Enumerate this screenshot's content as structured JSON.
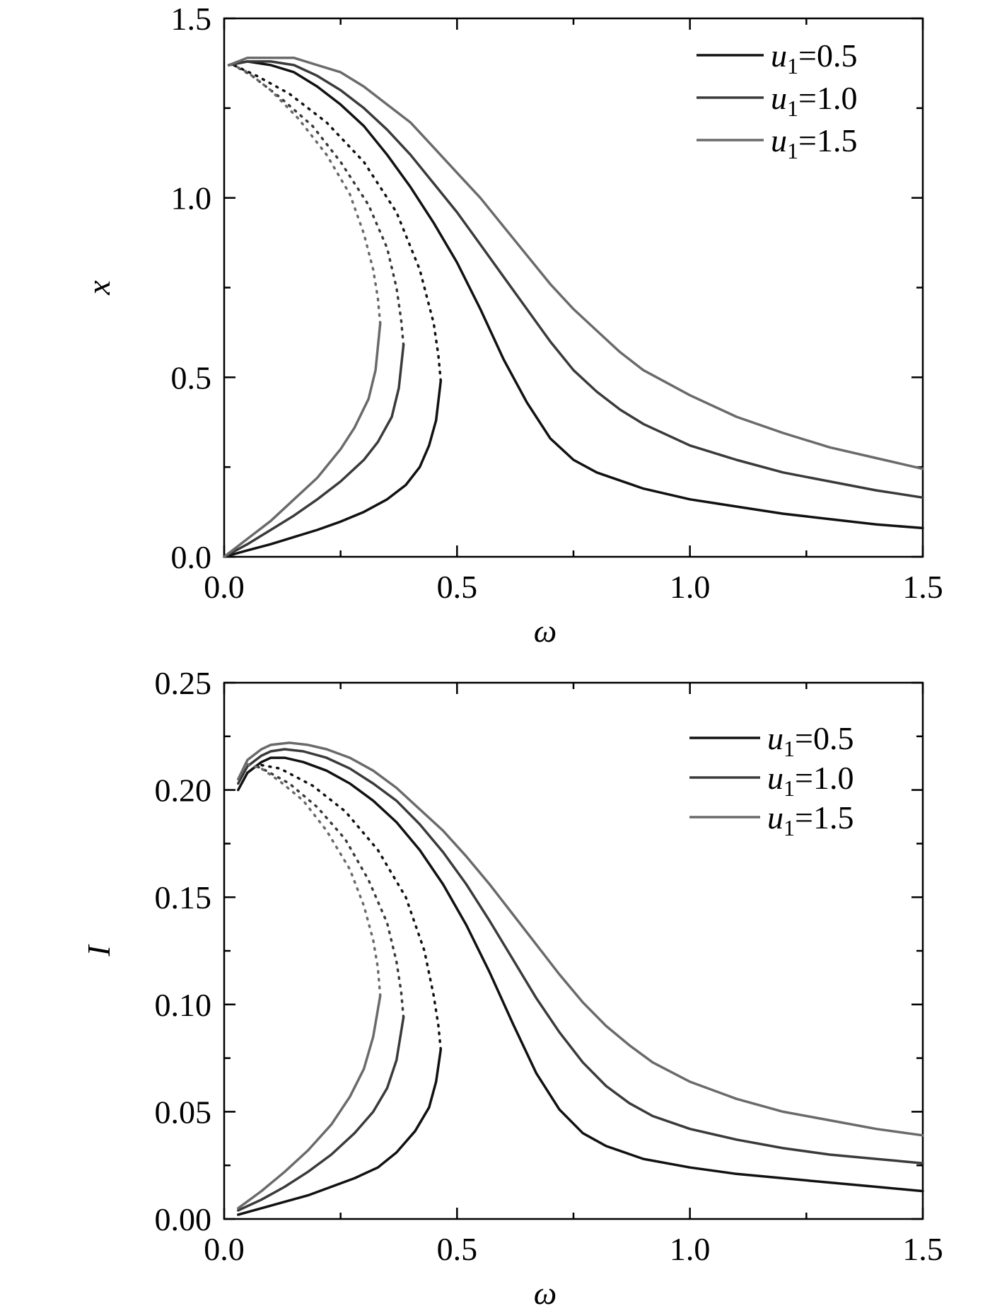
{
  "chart_data": [
    {
      "type": "line",
      "xlabel": "ω",
      "ylabel": "x",
      "xlim": [
        0,
        1.5
      ],
      "ylim": [
        0,
        1.5
      ],
      "xticks": [
        "0.0",
        "0.5",
        "1.0",
        "1.5"
      ],
      "yticks": [
        "0.0",
        "0.5",
        "1.0",
        "1.5"
      ],
      "legend_position": "top-right",
      "grid": false,
      "series": [
        {
          "name_var": "u",
          "name_sub": "1",
          "name_value": "=0.5",
          "color": "#111111",
          "stable_low": {
            "x": [
              0,
              0.05,
              0.1,
              0.15,
              0.2,
              0.25,
              0.3,
              0.35,
              0.39,
              0.42,
              0.44,
              0.455,
              0.465
            ],
            "y": [
              0,
              0.018,
              0.035,
              0.055,
              0.075,
              0.098,
              0.125,
              0.16,
              0.2,
              0.25,
              0.31,
              0.38,
              0.49
            ]
          },
          "unstable": {
            "x": [
              0.465,
              0.46,
              0.45,
              0.42,
              0.37,
              0.3,
              0.22,
              0.14,
              0.07,
              0.02
            ],
            "y": [
              0.49,
              0.56,
              0.65,
              0.8,
              0.96,
              1.1,
              1.21,
              1.29,
              1.34,
              1.37
            ]
          },
          "stable_high": {
            "x": [
              0.01,
              0.05,
              0.1,
              0.15,
              0.2,
              0.25,
              0.3,
              0.35,
              0.4,
              0.45,
              0.5,
              0.55,
              0.6,
              0.65,
              0.7,
              0.75,
              0.8,
              0.9,
              1.0,
              1.1,
              1.2,
              1.3,
              1.4,
              1.5
            ],
            "y": [
              1.37,
              1.38,
              1.37,
              1.35,
              1.31,
              1.26,
              1.2,
              1.12,
              1.03,
              0.93,
              0.82,
              0.69,
              0.55,
              0.43,
              0.33,
              0.27,
              0.235,
              0.19,
              0.16,
              0.14,
              0.12,
              0.105,
              0.09,
              0.08
            ]
          }
        },
        {
          "name_var": "u",
          "name_sub": "1",
          "name_value": "=1.0",
          "color": "#3a3a3a",
          "stable_low": {
            "x": [
              0,
              0.05,
              0.1,
              0.15,
              0.2,
              0.25,
              0.3,
              0.33,
              0.36,
              0.375,
              0.385
            ],
            "y": [
              0,
              0.035,
              0.075,
              0.115,
              0.16,
              0.21,
              0.27,
              0.32,
              0.39,
              0.47,
              0.59
            ]
          },
          "unstable": {
            "x": [
              0.385,
              0.38,
              0.37,
              0.35,
              0.31,
              0.25,
              0.19,
              0.12,
              0.06,
              0.02
            ],
            "y": [
              0.59,
              0.66,
              0.75,
              0.86,
              0.98,
              1.1,
              1.2,
              1.28,
              1.34,
              1.37
            ]
          },
          "stable_high": {
            "x": [
              0.01,
              0.05,
              0.1,
              0.15,
              0.2,
              0.25,
              0.3,
              0.35,
              0.4,
              0.45,
              0.5,
              0.55,
              0.6,
              0.65,
              0.7,
              0.75,
              0.8,
              0.85,
              0.9,
              1.0,
              1.1,
              1.2,
              1.3,
              1.4,
              1.5
            ],
            "y": [
              1.37,
              1.38,
              1.38,
              1.37,
              1.34,
              1.3,
              1.25,
              1.19,
              1.12,
              1.04,
              0.96,
              0.87,
              0.78,
              0.69,
              0.6,
              0.52,
              0.46,
              0.41,
              0.37,
              0.31,
              0.27,
              0.235,
              0.21,
              0.185,
              0.165
            ]
          }
        },
        {
          "name_var": "u",
          "name_sub": "1",
          "name_value": "=1.5",
          "color": "#6a6a6a",
          "stable_low": {
            "x": [
              0,
              0.05,
              0.1,
              0.15,
              0.2,
              0.25,
              0.28,
              0.31,
              0.325,
              0.335
            ],
            "y": [
              0,
              0.05,
              0.1,
              0.16,
              0.22,
              0.3,
              0.36,
              0.44,
              0.52,
              0.65
            ]
          },
          "unstable": {
            "x": [
              0.335,
              0.33,
              0.32,
              0.3,
              0.27,
              0.22,
              0.16,
              0.1,
              0.05,
              0.02
            ],
            "y": [
              0.65,
              0.72,
              0.8,
              0.9,
              1.01,
              1.12,
              1.22,
              1.3,
              1.35,
              1.37
            ]
          },
          "stable_high": {
            "x": [
              0.01,
              0.05,
              0.1,
              0.15,
              0.2,
              0.25,
              0.3,
              0.35,
              0.4,
              0.45,
              0.5,
              0.55,
              0.6,
              0.65,
              0.7,
              0.75,
              0.8,
              0.85,
              0.9,
              1.0,
              1.1,
              1.2,
              1.3,
              1.4,
              1.5
            ],
            "y": [
              1.37,
              1.39,
              1.39,
              1.39,
              1.37,
              1.35,
              1.31,
              1.26,
              1.21,
              1.14,
              1.07,
              1.0,
              0.92,
              0.84,
              0.76,
              0.69,
              0.63,
              0.57,
              0.52,
              0.45,
              0.39,
              0.345,
              0.305,
              0.275,
              0.245
            ]
          }
        }
      ]
    },
    {
      "type": "line",
      "xlabel": "ω",
      "ylabel": "I",
      "xlim": [
        0,
        1.5
      ],
      "ylim": [
        0,
        0.25
      ],
      "xticks": [
        "0.0",
        "0.5",
        "1.0",
        "1.5"
      ],
      "yticks": [
        "0.00",
        "0.05",
        "0.10",
        "0.15",
        "0.20",
        "0.25"
      ],
      "legend_position": "top-right",
      "grid": false,
      "series": [
        {
          "name_var": "u",
          "name_sub": "1",
          "name_value": "=0.5",
          "color": "#111111",
          "stable_low": {
            "x": [
              0.03,
              0.08,
              0.13,
              0.18,
              0.23,
              0.28,
              0.33,
              0.37,
              0.41,
              0.44,
              0.455,
              0.465
            ],
            "y": [
              0.002,
              0.005,
              0.008,
              0.011,
              0.015,
              0.019,
              0.024,
              0.031,
              0.041,
              0.052,
              0.064,
              0.079
            ]
          },
          "unstable": {
            "x": [
              0.465,
              0.46,
              0.45,
              0.43,
              0.39,
              0.33,
              0.26,
              0.19,
              0.12,
              0.07
            ],
            "y": [
              0.079,
              0.09,
              0.104,
              0.125,
              0.15,
              0.172,
              0.19,
              0.202,
              0.21,
              0.212
            ]
          },
          "stable_high": {
            "x": [
              0.03,
              0.05,
              0.08,
              0.1,
              0.13,
              0.17,
              0.22,
              0.27,
              0.32,
              0.37,
              0.42,
              0.47,
              0.52,
              0.57,
              0.62,
              0.67,
              0.72,
              0.77,
              0.82,
              0.9,
              1.0,
              1.1,
              1.2,
              1.3,
              1.4,
              1.5
            ],
            "y": [
              0.2,
              0.208,
              0.213,
              0.215,
              0.215,
              0.213,
              0.209,
              0.203,
              0.195,
              0.185,
              0.172,
              0.156,
              0.137,
              0.115,
              0.091,
              0.068,
              0.051,
              0.04,
              0.034,
              0.028,
              0.024,
              0.021,
              0.019,
              0.017,
              0.015,
              0.013
            ]
          }
        },
        {
          "name_var": "u",
          "name_sub": "1",
          "name_value": "=1.0",
          "color": "#3a3a3a",
          "stable_low": {
            "x": [
              0.03,
              0.08,
              0.13,
              0.18,
              0.23,
              0.28,
              0.32,
              0.35,
              0.37,
              0.385
            ],
            "y": [
              0.004,
              0.009,
              0.015,
              0.022,
              0.03,
              0.04,
              0.05,
              0.061,
              0.074,
              0.094
            ]
          },
          "unstable": {
            "x": [
              0.385,
              0.38,
              0.37,
              0.35,
              0.31,
              0.26,
              0.2,
              0.14,
              0.09,
              0.06
            ],
            "y": [
              0.094,
              0.106,
              0.12,
              0.138,
              0.158,
              0.177,
              0.192,
              0.203,
              0.209,
              0.212
            ]
          },
          "stable_high": {
            "x": [
              0.03,
              0.05,
              0.08,
              0.1,
              0.13,
              0.17,
              0.22,
              0.27,
              0.32,
              0.37,
              0.42,
              0.47,
              0.52,
              0.57,
              0.62,
              0.67,
              0.72,
              0.77,
              0.82,
              0.87,
              0.92,
              1.0,
              1.1,
              1.2,
              1.3,
              1.4,
              1.5
            ],
            "y": [
              0.203,
              0.211,
              0.216,
              0.218,
              0.219,
              0.218,
              0.215,
              0.21,
              0.203,
              0.195,
              0.184,
              0.171,
              0.156,
              0.139,
              0.121,
              0.103,
              0.087,
              0.073,
              0.062,
              0.054,
              0.048,
              0.042,
              0.037,
              0.033,
              0.03,
              0.028,
              0.026
            ]
          }
        },
        {
          "name_var": "u",
          "name_sub": "1",
          "name_value": "=1.5",
          "color": "#6a6a6a",
          "stable_low": {
            "x": [
              0.03,
              0.08,
              0.13,
              0.18,
              0.23,
              0.27,
              0.3,
              0.32,
              0.335
            ],
            "y": [
              0.005,
              0.013,
              0.022,
              0.032,
              0.044,
              0.057,
              0.07,
              0.085,
              0.104
            ]
          },
          "unstable": {
            "x": [
              0.335,
              0.33,
              0.32,
              0.3,
              0.27,
              0.22,
              0.17,
              0.12,
              0.08,
              0.05
            ],
            "y": [
              0.104,
              0.117,
              0.13,
              0.146,
              0.163,
              0.181,
              0.195,
              0.204,
              0.21,
              0.212
            ]
          },
          "stable_high": {
            "x": [
              0.03,
              0.05,
              0.08,
              0.1,
              0.14,
              0.18,
              0.22,
              0.27,
              0.32,
              0.37,
              0.42,
              0.47,
              0.52,
              0.57,
              0.62,
              0.67,
              0.72,
              0.77,
              0.82,
              0.87,
              0.92,
              1.0,
              1.1,
              1.2,
              1.3,
              1.4,
              1.5
            ],
            "y": [
              0.205,
              0.214,
              0.219,
              0.221,
              0.222,
              0.221,
              0.219,
              0.215,
              0.209,
              0.201,
              0.191,
              0.181,
              0.169,
              0.156,
              0.142,
              0.128,
              0.114,
              0.101,
              0.09,
              0.081,
              0.073,
              0.064,
              0.056,
              0.05,
              0.046,
              0.042,
              0.039
            ]
          }
        }
      ]
    }
  ]
}
